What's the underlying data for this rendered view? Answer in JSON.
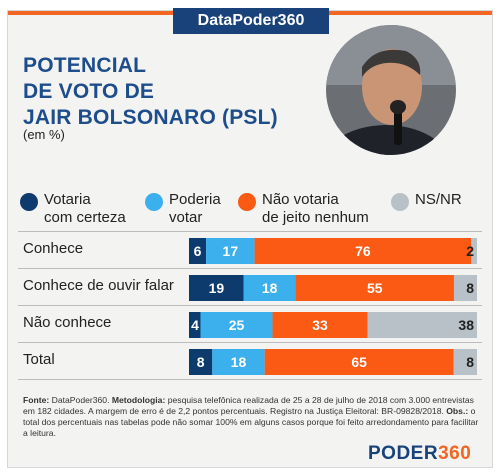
{
  "header": {
    "brand": "DataPoder360"
  },
  "title": "POTENCIAL\nDE VOTO DE\nJAIR BOLSONARO (PSL)",
  "subtitle": "(em %)",
  "colors": {
    "certeza": "#0d3b6e",
    "poderia": "#3cb0ec",
    "nao_votaria": "#fa5a14",
    "nsnr": "#b8c1c7",
    "title": "#1e4d8c",
    "brand_orange": "#f26522"
  },
  "chart_data": {
    "type": "bar",
    "orientation": "horizontal",
    "stacked": true,
    "unit": "%",
    "categories": [
      "Conhece",
      "Conhece de ouvir falar",
      "Não conhece",
      "Total"
    ],
    "series": [
      {
        "name": "Votaria\ncom certeza",
        "color": "#0d3b6e",
        "values": [
          6,
          19,
          4,
          8
        ]
      },
      {
        "name": "Poderia\nvotar",
        "color": "#3cb0ec",
        "values": [
          17,
          18,
          25,
          18
        ]
      },
      {
        "name": "Não votaria\nde jeito nenhum",
        "color": "#fa5a14",
        "values": [
          76,
          55,
          33,
          65
        ]
      },
      {
        "name": "NS/NR",
        "color": "#b8c1c7",
        "values": [
          2,
          8,
          38,
          8
        ]
      }
    ],
    "xlim": [
      0,
      100
    ],
    "legend": "top"
  },
  "footnote": {
    "fonte_label": "Fonte:",
    "fonte": " DataPoder360. ",
    "metodologia_label": "Metodologia:",
    "metodologia": " pesquisa telefônica realizada de 25 a 28 de julho de 2018 com 3.000 entrevistas em 182 cidades. A margem de erro é de 2,2 pontos percentuais. Registro na Justiça Eleitoral: BR-09828/2018. ",
    "obs_label": "Obs.:",
    "obs": " o total dos percentuais nas tabelas pode não somar 100% em alguns casos porque foi feito arredondamento para facilitar a leitura."
  },
  "logo": {
    "word": "PODER",
    "num": "360"
  }
}
